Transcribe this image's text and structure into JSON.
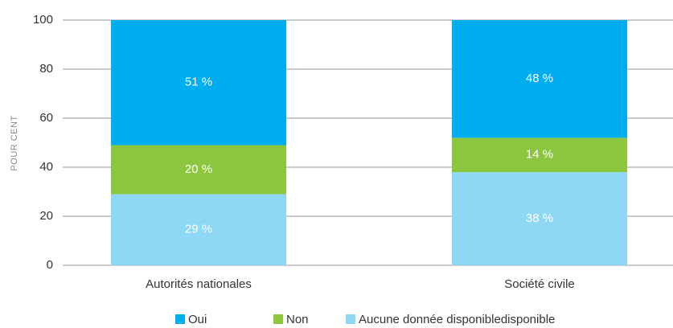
{
  "chart_data": {
    "type": "stacked_bar",
    "y_label": "POUR CENT",
    "categories": [
      "Autorités nationales",
      "Société civile"
    ],
    "series": [
      {
        "name": "Oui",
        "color": "#00aeef",
        "values": [
          51,
          48
        ],
        "value_labels": [
          "51 %",
          "48 %"
        ]
      },
      {
        "name": "Non",
        "color": "#8cc63f",
        "values": [
          20,
          14
        ],
        "value_labels": [
          "20 %",
          "14 %"
        ]
      },
      {
        "name": "Aucune donnée disponibledisponible",
        "color": "#8fd8f5",
        "values": [
          29,
          38
        ],
        "value_labels": [
          "29 %",
          "38 %"
        ]
      }
    ],
    "ylim": [
      0,
      100
    ],
    "yticks": [
      0,
      20,
      40,
      60,
      80,
      100
    ],
    "grid": true,
    "legend": "bottom"
  }
}
